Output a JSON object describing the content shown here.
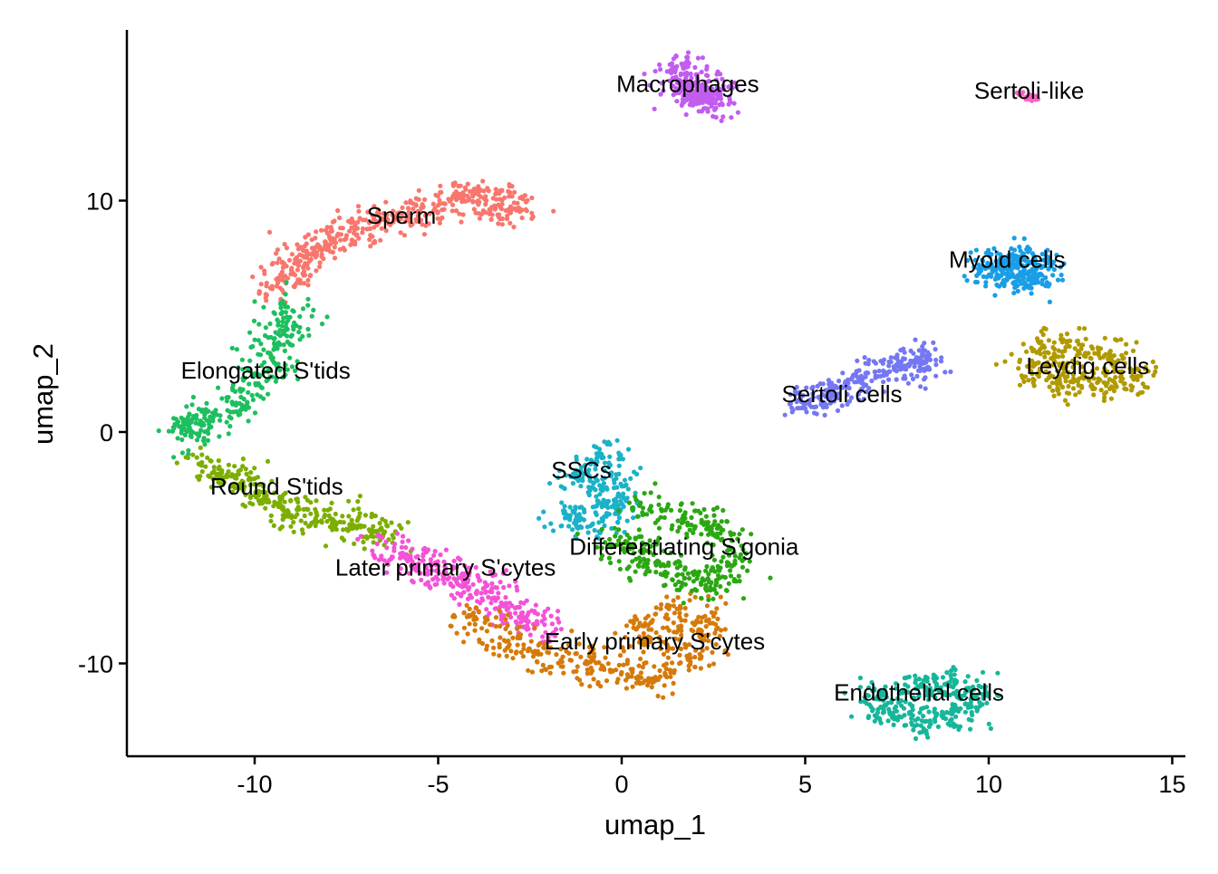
{
  "chart_data": {
    "type": "scatter",
    "title": "",
    "xlabel": "umap_1",
    "ylabel": "umap_2",
    "xlim": [
      -13.5,
      15.5
    ],
    "ylim": [
      -14,
      17.5
    ],
    "x_ticks": [
      -10,
      -5,
      0,
      5,
      10,
      15
    ],
    "y_ticks": [
      10,
      0,
      -10
    ],
    "x_tick_labels": [
      "-10",
      "-5",
      "0",
      "5",
      "10",
      "15"
    ],
    "y_tick_labels": [
      "10",
      "0",
      "-10"
    ],
    "grid": false,
    "legend": "none",
    "clusters": [
      {
        "name": "Sperm",
        "color": "#F8766D",
        "label_pos": [
          -6,
          9
        ],
        "points": [
          [
            -9.4,
            6.3
          ],
          [
            -9,
            7
          ],
          [
            -8.6,
            7.6
          ],
          [
            -8,
            8.1
          ],
          [
            -7.3,
            8.6
          ],
          [
            -6.6,
            9.1
          ],
          [
            -5.8,
            9.5
          ],
          [
            -5,
            9.8
          ],
          [
            -4.2,
            10.2
          ],
          [
            -3.5,
            10.1
          ],
          [
            -3,
            9.6
          ]
        ]
      },
      {
        "name": "Elongated S'tids",
        "color": "#1DBF5F",
        "label_pos": [
          -9.7,
          2.3
        ],
        "points": [
          [
            -9.1,
            5.4
          ],
          [
            -9.2,
            4.3
          ],
          [
            -9.5,
            3.2
          ],
          [
            -9.9,
            2.1
          ],
          [
            -10.6,
            1.2
          ],
          [
            -11.3,
            0.5
          ],
          [
            -11.9,
            0.1
          ]
        ]
      },
      {
        "name": "Round S'tids",
        "color": "#7CAE00",
        "label_pos": [
          -9.4,
          -2.7
        ],
        "points": [
          [
            -11.5,
            -1.4
          ],
          [
            -10.5,
            -2
          ],
          [
            -9.8,
            -2.6
          ],
          [
            -9.2,
            -3.4
          ],
          [
            -8.3,
            -3.6
          ],
          [
            -7.4,
            -4
          ],
          [
            -6.7,
            -4.3
          ]
        ]
      },
      {
        "name": "Later primary S'cytes",
        "color": "#F452D7",
        "label_pos": [
          -4.8,
          -6.2
        ],
        "points": [
          [
            -6.4,
            -5
          ],
          [
            -5.7,
            -5.6
          ],
          [
            -5,
            -6
          ],
          [
            -4.3,
            -6.5
          ],
          [
            -3.7,
            -6.9
          ],
          [
            -3.1,
            -7.6
          ],
          [
            -2.3,
            -8.3
          ]
        ]
      },
      {
        "name": "Early primary S'cytes",
        "color": "#D57A0A",
        "label_pos": [
          0.9,
          -9.4
        ],
        "points": [
          [
            -4,
            -8.1
          ],
          [
            -3.2,
            -9
          ],
          [
            -2.2,
            -9.6
          ],
          [
            -1,
            -10
          ],
          [
            0,
            -10.4
          ],
          [
            1,
            -10.7
          ],
          [
            1.8,
            -9.8
          ],
          [
            2.3,
            -8.4
          ],
          [
            1.6,
            -7.6
          ],
          [
            0.6,
            -8.7
          ]
        ]
      },
      {
        "name": "SSCs",
        "color": "#1AB2C8",
        "label_pos": [
          -1.1,
          -2
        ],
        "points": [
          [
            -0.6,
            -1
          ],
          [
            -1.2,
            -2
          ],
          [
            -0.2,
            -2.2
          ],
          [
            -1.4,
            -3.6
          ],
          [
            -0.8,
            -4
          ],
          [
            -0.1,
            -3.2
          ]
        ]
      },
      {
        "name": "Differentiating S'gonia",
        "color": "#2BA712",
        "label_pos": [
          1.7,
          -5.3
        ],
        "points": [
          [
            0.8,
            -3.2
          ],
          [
            1.9,
            -3.7
          ],
          [
            2.6,
            -4.4
          ],
          [
            3,
            -5.8
          ],
          [
            2.5,
            -6.8
          ],
          [
            1.5,
            -6.2
          ],
          [
            0.6,
            -5.5
          ],
          [
            0.1,
            -4.8
          ]
        ]
      },
      {
        "name": "Macrophages",
        "color": "#C25DF0",
        "label_pos": [
          1.8,
          14.7
        ],
        "points": [
          [
            1.5,
            15.8
          ],
          [
            1.9,
            15.3
          ],
          [
            2.3,
            14.8
          ],
          [
            2.7,
            14.4
          ],
          [
            2.1,
            14.3
          ],
          [
            1.7,
            14.8
          ]
        ]
      },
      {
        "name": "Sertoli-like",
        "color": "#FF61C3",
        "label_pos": [
          11.1,
          14.4
        ],
        "points": [
          [
            10.9,
            14.6
          ],
          [
            11.1,
            14.5
          ],
          [
            11.2,
            14.4
          ]
        ]
      },
      {
        "name": "Myoid cells",
        "color": "#199EE6",
        "label_pos": [
          10.5,
          7.1
        ],
        "points": [
          [
            10.3,
            7.4
          ],
          [
            10.9,
            7.6
          ],
          [
            11.4,
            7.2
          ],
          [
            11.3,
            6.5
          ],
          [
            10.7,
            6.7
          ],
          [
            10.1,
            6.9
          ]
        ]
      },
      {
        "name": "Leydig cells",
        "color": "#B09A00",
        "label_pos": [
          12.7,
          2.5
        ],
        "points": [
          [
            11.2,
            3.5
          ],
          [
            12.2,
            3.7
          ],
          [
            13.3,
            3.2
          ],
          [
            13.9,
            2.4
          ],
          [
            13.2,
            2
          ],
          [
            12.1,
            2.2
          ],
          [
            11.4,
            2.7
          ]
        ]
      },
      {
        "name": "Sertoli cells",
        "color": "#7577F3",
        "label_pos": [
          6,
          1.3
        ],
        "points": [
          [
            4.9,
            1.3
          ],
          [
            5.6,
            1.6
          ],
          [
            6.2,
            1.9
          ],
          [
            6.9,
            2.6
          ],
          [
            7.6,
            2.8
          ],
          [
            8.3,
            3.1
          ]
        ]
      },
      {
        "name": "Endothelial cells",
        "color": "#17B69A",
        "label_pos": [
          8.1,
          -11.6
        ],
        "points": [
          [
            7,
            -11.4
          ],
          [
            7.8,
            -11
          ],
          [
            8.8,
            -10.9
          ],
          [
            9.6,
            -11.4
          ],
          [
            9.1,
            -12.3
          ],
          [
            8.3,
            -12.5
          ],
          [
            7.3,
            -12.1
          ]
        ]
      }
    ]
  }
}
